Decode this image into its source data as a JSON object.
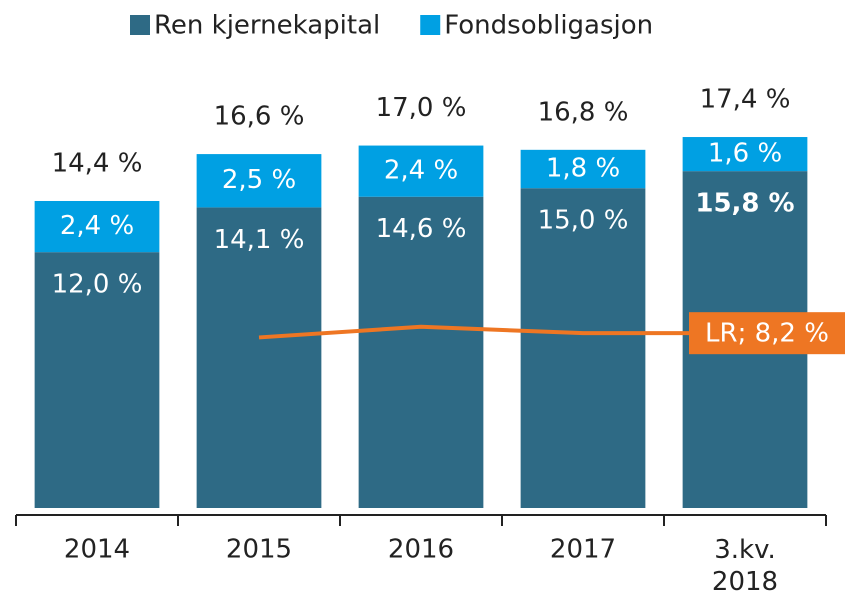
{
  "chart_data": {
    "type": "stacked_bar_line",
    "categories": [
      "2014",
      "2015",
      "2016",
      "2017",
      "3.kv. 2018"
    ],
    "series": [
      {
        "name": "Ren kjernekapital",
        "color": "#2e6a85",
        "values": [
          12.0,
          14.1,
          14.6,
          15.0,
          15.8
        ],
        "value_labels": [
          "12,0 %",
          "14,1 %",
          "14,6 %",
          "15,0 %",
          "15,8 %"
        ],
        "bold": [
          false,
          false,
          false,
          false,
          true
        ]
      },
      {
        "name": "Fondsobligasjon",
        "color": "#00a0e3",
        "values": [
          2.4,
          2.5,
          2.4,
          1.8,
          1.6
        ],
        "value_labels": [
          "2,4 %",
          "2,5 %",
          "2,4 %",
          "1,8 %",
          "1,6 %"
        ]
      }
    ],
    "totals": [
      14.4,
      16.6,
      17.0,
      16.8,
      17.4
    ],
    "total_labels": [
      "14,4 %",
      "16,6 %",
      "17,0 %",
      "16,8 %",
      "17,4 %"
    ],
    "line": {
      "color": "#ee7623",
      "values": [
        null,
        8.0,
        8.5,
        8.2,
        8.2
      ],
      "value_labels": [
        null,
        null,
        null,
        null,
        "LR; 8,2 %"
      ]
    },
    "ylim": [
      0,
      20
    ]
  }
}
